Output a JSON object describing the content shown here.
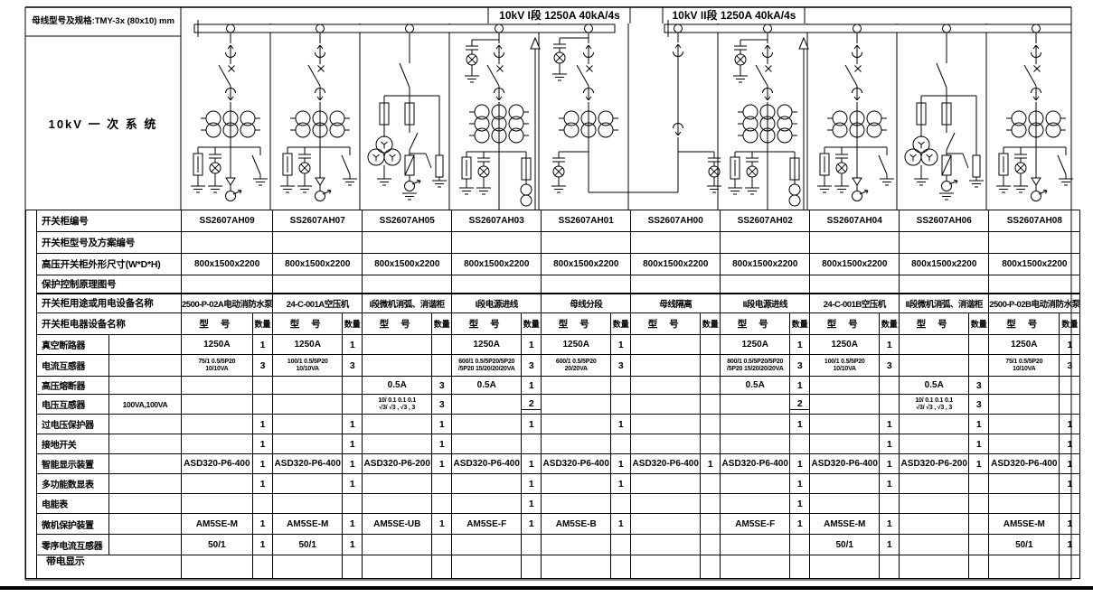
{
  "sheet": {
    "busbar_spec": "母线型号及规格:TMY-3x (80x10) mm",
    "system_label": "10kV 一 次 系 统",
    "bus_sections": [
      {
        "label": "10kV I段 1250A 40kA/4s"
      },
      {
        "label": "10kV II段 1250A 40kA/4s"
      }
    ]
  },
  "table": {
    "row_labels": {
      "panel_no": "开关柜编号",
      "model_scheme": "开关柜型号及方案编号",
      "dimensions": "高压开关柜外形尺寸(W*D*H)",
      "drawing_no": "保护控制原理图号",
      "purpose": "开关柜用途或用电设备名称",
      "equipment": "开关柜电器设备名称"
    },
    "subheader": {
      "model": "型 号",
      "qty": "数量"
    },
    "pt_secondary_label": "100VA,100VA",
    "clipped_row_label": "带电显示",
    "device_rows": [
      "真空断路器",
      "电流互感器",
      "高压熔断器",
      "电压互感器",
      "过电压保护器",
      "接地开关",
      "智能显示装置",
      "多功能数显表",
      "电能表",
      "微机保护装置",
      "零序电流互感器"
    ],
    "bays": [
      {
        "panel_no": "SS2607AH09",
        "model_scheme": "",
        "dimensions": "800x1500x2200",
        "drawing_no": "",
        "purpose": "2500-P-02A电动消防水泵",
        "diagram": "feeder",
        "devices": [
          {
            "model": "1250A",
            "qty": "1"
          },
          {
            "model_lines": [
              "75/1  0.5/5P20",
              "10/10VA"
            ],
            "qty": "3"
          },
          {},
          {},
          {
            "qty": "1"
          },
          {
            "qty": "1"
          },
          {
            "model": "ASD320-P6-400",
            "qty": "1"
          },
          {
            "qty": "1"
          },
          {},
          {
            "model": "AM5SE-M",
            "qty": "1"
          },
          {
            "model": "50/1",
            "qty": "1"
          }
        ]
      },
      {
        "panel_no": "SS2607AH07",
        "model_scheme": "",
        "dimensions": "800x1500x2200",
        "drawing_no": "",
        "purpose": "24-C-001A空压机",
        "diagram": "feeder",
        "devices": [
          {
            "model": "1250A",
            "qty": "1"
          },
          {
            "model_lines": [
              "100/1  0.5/5P20",
              "10/10VA"
            ],
            "qty": "3"
          },
          {},
          {},
          {
            "qty": "1"
          },
          {
            "qty": "1"
          },
          {
            "model": "ASD320-P6-400",
            "qty": "1"
          },
          {
            "qty": "1"
          },
          {},
          {
            "model": "AM5SE-M",
            "qty": "1"
          },
          {
            "model": "50/1",
            "qty": "1"
          }
        ]
      },
      {
        "panel_no": "SS2607AH05",
        "model_scheme": "",
        "dimensions": "800x1500x2200",
        "drawing_no": "",
        "purpose": "I段微机消弧、消谐柜",
        "diagram": "pt",
        "devices": [
          {},
          {},
          {
            "model": "0.5A",
            "qty": "3"
          },
          {
            "model_lines": [
              "10/ 0.1 0.1 0.1",
              "√3/ √3 , √3 , 3"
            ],
            "qty": "3"
          },
          {
            "qty": "1"
          },
          {
            "qty": "1"
          },
          {
            "model": "ASD320-P6-200",
            "qty": "1"
          },
          {},
          {},
          {
            "model": "AM5SE-UB",
            "qty": "1"
          },
          {}
        ]
      },
      {
        "panel_no": "SS2607AH03",
        "model_scheme": "",
        "dimensions": "800x1500x2200",
        "drawing_no": "",
        "purpose": "I段电源进线",
        "diagram": "incoming",
        "devices": [
          {
            "model": "1250A",
            "qty": "1"
          },
          {
            "model_lines": [
              "600/1  0.5/5P20/5P20",
              "/5P20  15/20/20/20VA"
            ],
            "qty": "3"
          },
          {
            "model": "0.5A",
            "qty": "1"
          },
          {
            "qty": "2",
            "split": true
          },
          {
            "qty": "1"
          },
          {},
          {
            "model": "ASD320-P6-400",
            "qty": "1"
          },
          {
            "qty": "1"
          },
          {
            "qty": "1"
          },
          {
            "model": "AM5SE-F",
            "qty": "1"
          },
          {}
        ]
      },
      {
        "panel_no": "SS2607AH01",
        "model_scheme": "",
        "dimensions": "800x1500x2200",
        "drawing_no": "",
        "purpose": "母线分段",
        "diagram": "section",
        "devices": [
          {
            "model": "1250A",
            "qty": "1"
          },
          {
            "model_lines": [
              "600/1  0.5/5P20",
              "20/20VA"
            ],
            "qty": "3"
          },
          {},
          {},
          {
            "qty": "1"
          },
          {},
          {
            "model": "ASD320-P6-400",
            "qty": "1"
          },
          {
            "qty": "1"
          },
          {},
          {
            "model": "AM5SE-B",
            "qty": "1"
          },
          {}
        ]
      },
      {
        "panel_no": "SS2607AH00",
        "model_scheme": "",
        "dimensions": "800x1500x2200",
        "drawing_no": "",
        "purpose": "母线隔离",
        "diagram": "isolation",
        "devices": [
          {},
          {},
          {},
          {},
          {},
          {},
          {
            "model": "ASD320-P6-400",
            "qty": "1"
          },
          {},
          {},
          {},
          {}
        ]
      },
      {
        "panel_no": "SS2607AH02",
        "model_scheme": "",
        "dimensions": "800x1500x2200",
        "drawing_no": "",
        "purpose": "II段电源进线",
        "diagram": "incoming",
        "devices": [
          {
            "model": "1250A",
            "qty": "1"
          },
          {
            "model_lines": [
              "800/1  0.5/5P20/5P20",
              "/5P20  15/20/20/20VA"
            ],
            "qty": "3"
          },
          {
            "model": "0.5A",
            "qty": "1"
          },
          {
            "qty": "2",
            "split": true
          },
          {
            "qty": "1"
          },
          {},
          {
            "model": "ASD320-P6-400",
            "qty": "1"
          },
          {
            "qty": "1"
          },
          {
            "qty": "1"
          },
          {
            "model": "AM5SE-F",
            "qty": "1"
          },
          {}
        ]
      },
      {
        "panel_no": "SS2607AH04",
        "model_scheme": "",
        "dimensions": "800x1500x2200",
        "drawing_no": "",
        "purpose": "24-C-001B空压机",
        "diagram": "feeder",
        "devices": [
          {
            "model": "1250A",
            "qty": "1"
          },
          {
            "model_lines": [
              "100/1  0.5/5P20",
              "10/10VA"
            ],
            "qty": "3"
          },
          {},
          {},
          {
            "qty": "1"
          },
          {
            "qty": "1"
          },
          {
            "model": "ASD320-P6-400",
            "qty": "1"
          },
          {
            "qty": "1"
          },
          {},
          {
            "model": "AM5SE-M",
            "qty": "1"
          },
          {
            "model": "50/1",
            "qty": "1"
          }
        ]
      },
      {
        "panel_no": "SS2607AH06",
        "model_scheme": "",
        "dimensions": "800x1500x2200",
        "drawing_no": "",
        "purpose": "II段微机消弧、消谐柜",
        "diagram": "pt",
        "devices": [
          {},
          {},
          {
            "model": "0.5A",
            "qty": "3"
          },
          {
            "model_lines": [
              "10/ 0.1 0.1 0.1",
              "√3/ √3 , √3 , 3"
            ],
            "qty": "3"
          },
          {
            "qty": "1"
          },
          {
            "qty": "1"
          },
          {
            "model": "ASD320-P6-200",
            "qty": "1"
          },
          {},
          {},
          {},
          {}
        ]
      },
      {
        "panel_no": "SS2607AH08",
        "model_scheme": "",
        "dimensions": "800x1500x2200",
        "drawing_no": "",
        "purpose": "2500-P-02B电动消防水泵",
        "diagram": "feeder",
        "devices": [
          {
            "model": "1250A",
            "qty": "1"
          },
          {
            "model_lines": [
              "75/1  0.5/5P20",
              "10/10VA"
            ],
            "qty": "3"
          },
          {},
          {},
          {
            "qty": "1"
          },
          {
            "qty": "1"
          },
          {
            "model": "ASD320-P6-400",
            "qty": "1"
          },
          {
            "qty": "1"
          },
          {},
          {
            "model": "AM5SE-M",
            "qty": "1"
          },
          {
            "model": "50/1",
            "qty": "1"
          }
        ]
      }
    ]
  }
}
